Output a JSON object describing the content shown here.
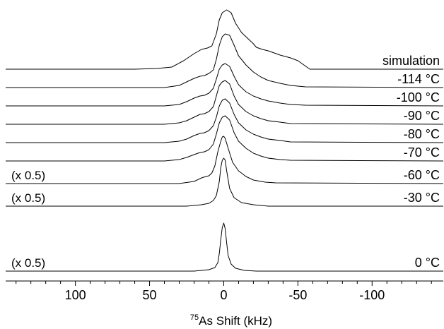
{
  "chart_data": {
    "type": "line",
    "title": "",
    "xlabel": "As Shift (kHz)",
    "xlabel_superscript": "75",
    "ylabel": "",
    "xlim": [
      147,
      -148
    ],
    "x_ticks": [
      100,
      50,
      0,
      -50,
      -100
    ],
    "x_tick_labels": [
      "100",
      "50",
      "0",
      "-50",
      "-100"
    ],
    "grid": false,
    "legend": "none",
    "series": [
      {
        "name": "simulation",
        "factor": "",
        "baseline": 98,
        "points": [
          [
            147,
            0
          ],
          [
            60,
            0
          ],
          [
            45,
            -1
          ],
          [
            35,
            -3
          ],
          [
            27,
            -12
          ],
          [
            20,
            -22
          ],
          [
            15,
            -28
          ],
          [
            11,
            -30
          ],
          [
            8,
            -33
          ],
          [
            5,
            -50
          ],
          [
            3,
            -70
          ],
          [
            1,
            -80
          ],
          [
            -2,
            -84
          ],
          [
            -5,
            -80
          ],
          [
            -8,
            -65
          ],
          [
            -12,
            -52
          ],
          [
            -16,
            -44
          ],
          [
            -20,
            -36
          ],
          [
            -22,
            -31
          ],
          [
            -26,
            -28
          ],
          [
            -30,
            -26
          ],
          [
            -38,
            -20
          ],
          [
            -45,
            -16
          ],
          [
            -50,
            -12
          ],
          [
            -54,
            -6
          ],
          [
            -58,
            0
          ],
          [
            -148,
            0
          ]
        ]
      },
      {
        "name": "-114 °C",
        "factor": "",
        "baseline": 124,
        "points": [
          [
            147,
            0
          ],
          [
            40,
            0
          ],
          [
            30,
            -3
          ],
          [
            25,
            -8
          ],
          [
            20,
            -13
          ],
          [
            16,
            -16
          ],
          [
            13,
            -17
          ],
          [
            10,
            -20
          ],
          [
            7,
            -25
          ],
          [
            5,
            -40
          ],
          [
            3,
            -60
          ],
          [
            1,
            -72
          ],
          [
            -1,
            -76
          ],
          [
            -4,
            -74
          ],
          [
            -7,
            -60
          ],
          [
            -10,
            -45
          ],
          [
            -15,
            -32
          ],
          [
            -20,
            -22
          ],
          [
            -25,
            -15
          ],
          [
            -30,
            -10
          ],
          [
            -38,
            -6
          ],
          [
            -45,
            -3
          ],
          [
            -55,
            -1
          ],
          [
            -148,
            0
          ]
        ]
      },
      {
        "name": "-100 °C",
        "factor": "",
        "baseline": 150,
        "points": [
          [
            147,
            0
          ],
          [
            40,
            0
          ],
          [
            30,
            -2
          ],
          [
            25,
            -6
          ],
          [
            20,
            -11
          ],
          [
            16,
            -14
          ],
          [
            13,
            -15
          ],
          [
            10,
            -18
          ],
          [
            7,
            -25
          ],
          [
            5,
            -38
          ],
          [
            3,
            -52
          ],
          [
            1,
            -58
          ],
          [
            -1,
            -60
          ],
          [
            -4,
            -56
          ],
          [
            -7,
            -42
          ],
          [
            -10,
            -30
          ],
          [
            -15,
            -20
          ],
          [
            -20,
            -14
          ],
          [
            -25,
            -10
          ],
          [
            -30,
            -7
          ],
          [
            -38,
            -4
          ],
          [
            -45,
            -2
          ],
          [
            -55,
            -1
          ],
          [
            -148,
            0
          ]
        ]
      },
      {
        "name": "-90 °C",
        "factor": "",
        "baseline": 176,
        "points": [
          [
            147,
            0
          ],
          [
            40,
            0
          ],
          [
            30,
            -2
          ],
          [
            25,
            -5
          ],
          [
            20,
            -10
          ],
          [
            16,
            -14
          ],
          [
            13,
            -15
          ],
          [
            10,
            -18
          ],
          [
            7,
            -25
          ],
          [
            5,
            -40
          ],
          [
            3,
            -55
          ],
          [
            1,
            -60
          ],
          [
            -1,
            -62
          ],
          [
            -4,
            -57
          ],
          [
            -7,
            -40
          ],
          [
            -10,
            -28
          ],
          [
            -15,
            -18
          ],
          [
            -20,
            -12
          ],
          [
            -25,
            -8
          ],
          [
            -30,
            -5
          ],
          [
            -38,
            -3
          ],
          [
            -45,
            -1
          ],
          [
            -148,
            0
          ]
        ]
      },
      {
        "name": "-80 °C",
        "factor": "",
        "baseline": 202,
        "points": [
          [
            147,
            0
          ],
          [
            40,
            0
          ],
          [
            30,
            -2
          ],
          [
            25,
            -5
          ],
          [
            20,
            -10
          ],
          [
            16,
            -13
          ],
          [
            13,
            -14
          ],
          [
            10,
            -17
          ],
          [
            7,
            -24
          ],
          [
            5,
            -36
          ],
          [
            3,
            -52
          ],
          [
            1,
            -60
          ],
          [
            -1,
            -62
          ],
          [
            -4,
            -56
          ],
          [
            -7,
            -40
          ],
          [
            -10,
            -28
          ],
          [
            -15,
            -18
          ],
          [
            -20,
            -12
          ],
          [
            -25,
            -8
          ],
          [
            -30,
            -5
          ],
          [
            -38,
            -3
          ],
          [
            -45,
            -1
          ],
          [
            -148,
            0
          ]
        ]
      },
      {
        "name": "-70 °C",
        "factor": "",
        "baseline": 228,
        "points": [
          [
            147,
            0
          ],
          [
            40,
            0
          ],
          [
            30,
            -2
          ],
          [
            25,
            -5
          ],
          [
            20,
            -9
          ],
          [
            16,
            -12
          ],
          [
            13,
            -13
          ],
          [
            10,
            -16
          ],
          [
            7,
            -24
          ],
          [
            5,
            -38
          ],
          [
            3,
            -54
          ],
          [
            1,
            -62
          ],
          [
            -1,
            -64
          ],
          [
            -4,
            -58
          ],
          [
            -7,
            -40
          ],
          [
            -10,
            -28
          ],
          [
            -15,
            -18
          ],
          [
            -20,
            -11
          ],
          [
            -25,
            -7
          ],
          [
            -30,
            -4
          ],
          [
            -38,
            -2
          ],
          [
            -45,
            -1
          ],
          [
            -148,
            0
          ]
        ]
      },
      {
        "name": "-60 °C",
        "factor": "(x 0.5)",
        "baseline": 260,
        "points": [
          [
            147,
            0
          ],
          [
            30,
            0
          ],
          [
            20,
            -3
          ],
          [
            15,
            -8
          ],
          [
            12,
            -10
          ],
          [
            10,
            -11
          ],
          [
            8,
            -15
          ],
          [
            6,
            -25
          ],
          [
            4,
            -45
          ],
          [
            2,
            -60
          ],
          [
            1,
            -66
          ],
          [
            0,
            -67
          ],
          [
            -1,
            -64
          ],
          [
            -3,
            -50
          ],
          [
            -6,
            -30
          ],
          [
            -10,
            -18
          ],
          [
            -15,
            -10
          ],
          [
            -20,
            -5
          ],
          [
            -28,
            -2
          ],
          [
            -35,
            -1
          ],
          [
            -148,
            0
          ]
        ]
      },
      {
        "name": "-30 °C",
        "factor": "(x 0.5)",
        "baseline": 292,
        "points": [
          [
            147,
            0
          ],
          [
            25,
            0
          ],
          [
            15,
            -2
          ],
          [
            10,
            -4
          ],
          [
            7,
            -8
          ],
          [
            5,
            -15
          ],
          [
            3,
            -35
          ],
          [
            2,
            -55
          ],
          [
            1,
            -65
          ],
          [
            0,
            -68
          ],
          [
            -1,
            -65
          ],
          [
            -2,
            -50
          ],
          [
            -4,
            -25
          ],
          [
            -7,
            -12
          ],
          [
            -12,
            -5
          ],
          [
            -20,
            -2
          ],
          [
            -30,
            0
          ],
          [
            -148,
            0
          ]
        ]
      },
      {
        "name": "0 °C",
        "factor": "(x 0.5)",
        "baseline": 384,
        "points": [
          [
            147,
            0
          ],
          [
            20,
            0
          ],
          [
            10,
            -2
          ],
          [
            6,
            -5
          ],
          [
            4,
            -12
          ],
          [
            3,
            -25
          ],
          [
            2,
            -45
          ],
          [
            1,
            -62
          ],
          [
            0,
            -68
          ],
          [
            -1,
            -60
          ],
          [
            -2,
            -40
          ],
          [
            -3,
            -22
          ],
          [
            -5,
            -10
          ],
          [
            -8,
            -4
          ],
          [
            -14,
            -1
          ],
          [
            -22,
            0
          ],
          [
            -148,
            0
          ]
        ]
      }
    ]
  }
}
